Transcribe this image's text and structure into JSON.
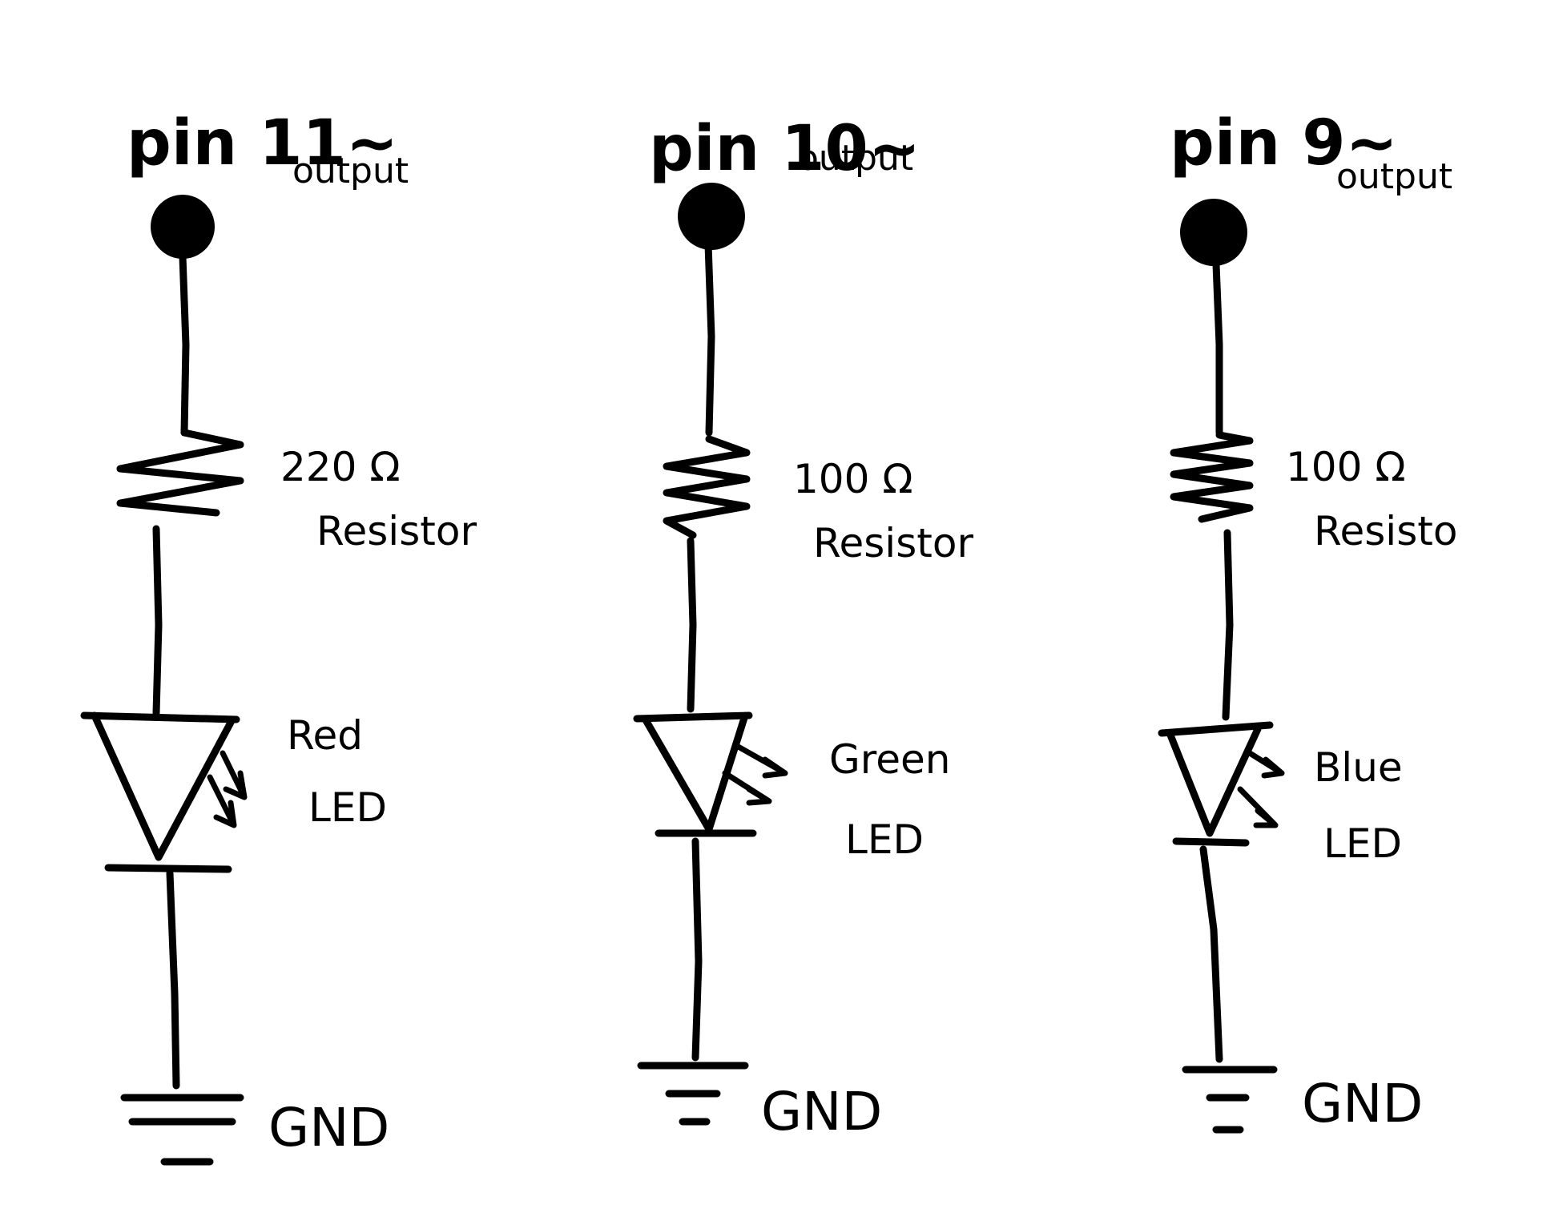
{
  "circuits": [
    {
      "pin_label": "pin 11~",
      "output_label": "output",
      "resistor_value": "220 Ω",
      "resistor_label": "Resistor",
      "led_color": "Red",
      "led_label": "LED",
      "ground_label": "GND"
    },
    {
      "pin_label": "pin 10~",
      "output_label": "output",
      "resistor_value": "100 Ω",
      "resistor_label": "Resistor",
      "led_color": "Green",
      "led_label": "LED",
      "ground_label": "GND"
    },
    {
      "pin_label": "pin 9~",
      "output_label": "output",
      "resistor_value": "100 Ω",
      "resistor_label": "Resisto",
      "led_color": "Blue",
      "led_label": "LED",
      "ground_label": "GND"
    }
  ]
}
